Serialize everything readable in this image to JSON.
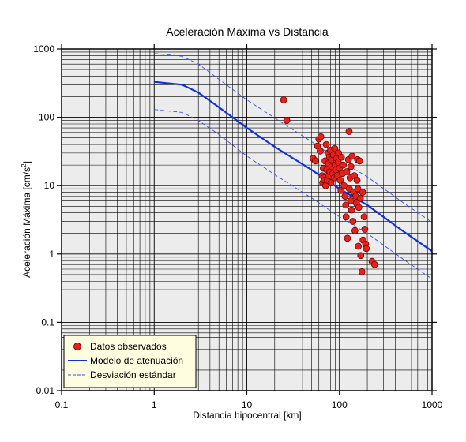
{
  "chart_data": {
    "type": "scatter",
    "title": "Aceleración Máxima vs Distancia",
    "xlabel": "Distancia hipocentral [km]",
    "ylabel_main": "Aceleración Máxima [cm/s",
    "ylabel_sup": "2",
    "ylabel_end": "]",
    "xscale": "log",
    "yscale": "log",
    "xlim": [
      0.1,
      1000
    ],
    "ylim": [
      0.01,
      1000
    ],
    "x_ticks": [
      0.1,
      1,
      10,
      100,
      1000
    ],
    "x_tick_labels": [
      "0.1",
      "1",
      "10",
      "100",
      "1000"
    ],
    "y_ticks": [
      0.01,
      0.1,
      1,
      10,
      100,
      1000
    ],
    "y_tick_labels": [
      "0.01",
      "0.1",
      "1",
      "10",
      "100",
      "1000"
    ],
    "grid": true,
    "legend_position": "bottom-left",
    "legend": {
      "points": "Datos observados",
      "model": "Modelo de atenuación",
      "std": "Desviación estándar"
    },
    "colors": {
      "points_fill": "#e8201a",
      "points_edge": "#5a0000",
      "model": "#1030e0",
      "std": "#3050f0",
      "plot_bg": "#ececec",
      "legend_bg": "#fffde0",
      "grid": "#000000"
    },
    "model_curve": {
      "x": [
        1,
        2,
        3,
        5,
        10,
        20,
        50,
        100,
        200,
        500,
        1000
      ],
      "y": [
        330,
        300,
        230,
        140,
        70,
        37,
        17,
        9,
        5.2,
        2.1,
        1.1
      ]
    },
    "upper_std": {
      "x": [
        1,
        2,
        3,
        5,
        10,
        20,
        50,
        100,
        200,
        500,
        1000
      ],
      "y": [
        860,
        780,
        600,
        360,
        180,
        98,
        44,
        23.5,
        13.5,
        5.5,
        2.9
      ]
    },
    "lower_std": {
      "x": [
        1,
        2,
        3,
        5,
        10,
        20,
        50,
        100,
        200,
        500,
        1000
      ],
      "y": [
        130,
        118,
        90,
        56,
        27,
        14.5,
        6.6,
        3.5,
        2.0,
        0.82,
        0.43
      ]
    },
    "points": [
      {
        "x": 25,
        "y": 180
      },
      {
        "x": 27,
        "y": 90
      },
      {
        "x": 52,
        "y": 25
      },
      {
        "x": 55,
        "y": 23
      },
      {
        "x": 58,
        "y": 38
      },
      {
        "x": 60,
        "y": 48
      },
      {
        "x": 62,
        "y": 32
      },
      {
        "x": 63,
        "y": 52
      },
      {
        "x": 65,
        "y": 14
      },
      {
        "x": 66,
        "y": 11
      },
      {
        "x": 67,
        "y": 18
      },
      {
        "x": 68,
        "y": 13
      },
      {
        "x": 69,
        "y": 12
      },
      {
        "x": 70,
        "y": 23
      },
      {
        "x": 71,
        "y": 10
      },
      {
        "x": 72,
        "y": 40
      },
      {
        "x": 73,
        "y": 17
      },
      {
        "x": 74,
        "y": 12
      },
      {
        "x": 75,
        "y": 30
      },
      {
        "x": 76,
        "y": 21
      },
      {
        "x": 77,
        "y": 14
      },
      {
        "x": 78,
        "y": 26
      },
      {
        "x": 79,
        "y": 16
      },
      {
        "x": 80,
        "y": 33
      },
      {
        "x": 81,
        "y": 11
      },
      {
        "x": 82,
        "y": 24
      },
      {
        "x": 83,
        "y": 19
      },
      {
        "x": 85,
        "y": 15
      },
      {
        "x": 86,
        "y": 28
      },
      {
        "x": 88,
        "y": 13
      },
      {
        "x": 89,
        "y": 35
      },
      {
        "x": 90,
        "y": 20
      },
      {
        "x": 92,
        "y": 17
      },
      {
        "x": 93,
        "y": 25
      },
      {
        "x": 95,
        "y": 14
      },
      {
        "x": 97,
        "y": 22
      },
      {
        "x": 98,
        "y": 30
      },
      {
        "x": 100,
        "y": 18
      },
      {
        "x": 102,
        "y": 12
      },
      {
        "x": 104,
        "y": 8.5
      },
      {
        "x": 105,
        "y": 26
      },
      {
        "x": 108,
        "y": 15
      },
      {
        "x": 110,
        "y": 20
      },
      {
        "x": 112,
        "y": 10
      },
      {
        "x": 115,
        "y": 7
      },
      {
        "x": 117,
        "y": 5.2
      },
      {
        "x": 118,
        "y": 3.5
      },
      {
        "x": 120,
        "y": 16
      },
      {
        "x": 122,
        "y": 1.7
      },
      {
        "x": 125,
        "y": 24
      },
      {
        "x": 127,
        "y": 62
      },
      {
        "x": 128,
        "y": 9
      },
      {
        "x": 130,
        "y": 13
      },
      {
        "x": 132,
        "y": 6
      },
      {
        "x": 133,
        "y": 19
      },
      {
        "x": 135,
        "y": 4.4
      },
      {
        "x": 137,
        "y": 27
      },
      {
        "x": 140,
        "y": 3
      },
      {
        "x": 142,
        "y": 8
      },
      {
        "x": 145,
        "y": 14
      },
      {
        "x": 147,
        "y": 2.2
      },
      {
        "x": 150,
        "y": 7
      },
      {
        "x": 153,
        "y": 5.5
      },
      {
        "x": 155,
        "y": 12
      },
      {
        "x": 157,
        "y": 24
      },
      {
        "x": 158,
        "y": 9
      },
      {
        "x": 160,
        "y": 1.3
      },
      {
        "x": 162,
        "y": 4.8
      },
      {
        "x": 165,
        "y": 23
      },
      {
        "x": 168,
        "y": 6.5
      },
      {
        "x": 170,
        "y": 0.95
      },
      {
        "x": 175,
        "y": 0.55
      },
      {
        "x": 178,
        "y": 8
      },
      {
        "x": 180,
        "y": 1.6
      },
      {
        "x": 185,
        "y": 3.5
      },
      {
        "x": 188,
        "y": 2.3
      },
      {
        "x": 192,
        "y": 1.4
      },
      {
        "x": 195,
        "y": 1.2
      },
      {
        "x": 225,
        "y": 0.78
      },
      {
        "x": 240,
        "y": 0.7
      }
    ]
  }
}
